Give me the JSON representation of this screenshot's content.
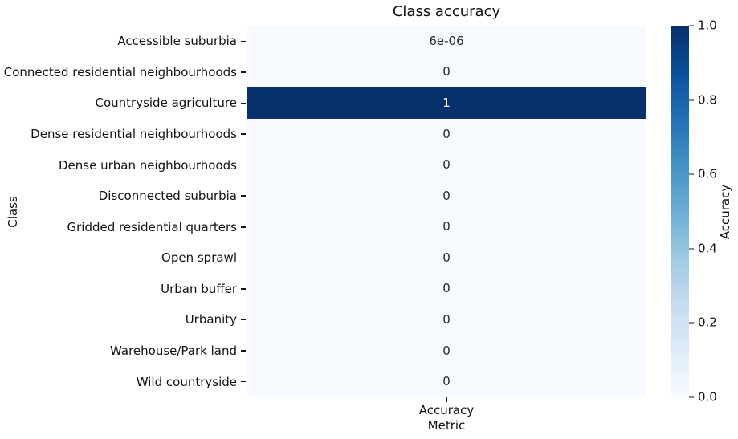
{
  "chart_data": {
    "type": "heatmap",
    "title": "Class accuracy",
    "xlabel": "Metric",
    "ylabel": "Class",
    "columns": [
      "Accuracy"
    ],
    "rows": [
      "Accessible suburbia",
      "Connected residential neighbourhoods",
      "Countryside agriculture",
      "Dense residential neighbourhoods",
      "Dense urban neighbourhoods",
      "Disconnected suburbia",
      "Gridded residential quarters",
      "Open sprawl",
      "Urban buffer",
      "Urbanity",
      "Warehouse/Park land",
      "Wild countryside"
    ],
    "values": [
      [
        6e-06
      ],
      [
        0
      ],
      [
        1
      ],
      [
        0
      ],
      [
        0
      ],
      [
        0
      ],
      [
        0
      ],
      [
        0
      ],
      [
        0
      ],
      [
        0
      ],
      [
        0
      ],
      [
        0
      ]
    ],
    "annotations": [
      [
        "6e-06"
      ],
      [
        "0"
      ],
      [
        "1"
      ],
      [
        "0"
      ],
      [
        "0"
      ],
      [
        "0"
      ],
      [
        "0"
      ],
      [
        "0"
      ],
      [
        "0"
      ],
      [
        "0"
      ],
      [
        "0"
      ],
      [
        "0"
      ]
    ],
    "vmin": 0,
    "vmax": 1,
    "colormap": "Blues",
    "colormap_stops": [
      {
        "t": 0.0,
        "color": "#f7fbff"
      },
      {
        "t": 0.125,
        "color": "#deebf7"
      },
      {
        "t": 0.25,
        "color": "#c6dbef"
      },
      {
        "t": 0.375,
        "color": "#9ecae1"
      },
      {
        "t": 0.5,
        "color": "#6baed6"
      },
      {
        "t": 0.625,
        "color": "#4292c6"
      },
      {
        "t": 0.75,
        "color": "#2171b5"
      },
      {
        "t": 0.875,
        "color": "#08519c"
      },
      {
        "t": 1.0,
        "color": "#08306b"
      }
    ],
    "annotation_colors": {
      "on_light": "#262626",
      "on_dark": "#ffffff"
    },
    "colorbar": {
      "label": "Accuracy",
      "ticks": [
        "1.0",
        "0.8",
        "0.6",
        "0.4",
        "0.2",
        "0.0"
      ],
      "position": "right"
    },
    "legend": null,
    "grid": false
  }
}
